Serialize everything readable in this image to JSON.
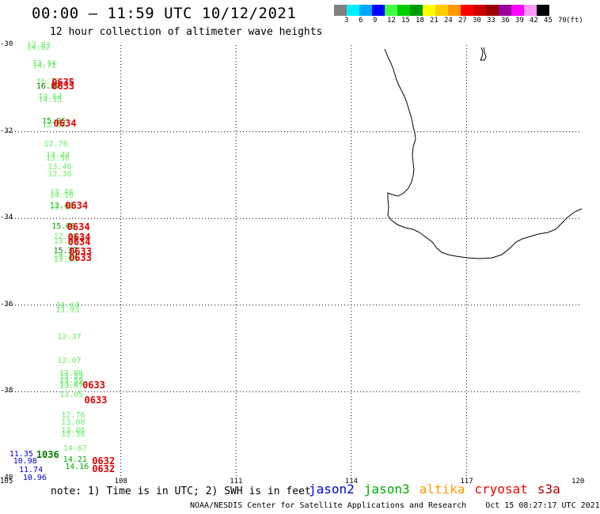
{
  "header": {
    "title": "00:00 – 11:59 UTC 10/12/2021",
    "subtitle": "12 hour collection of altimeter wave heights"
  },
  "legend": {
    "unit": "(ft)",
    "colors": [
      "#808080",
      "#00f0ff",
      "#00a8ff",
      "#0000ff",
      "#40ff40",
      "#00cc00",
      "#009900",
      "#ffff00",
      "#ffcc00",
      "#ff9900",
      "#ff0000",
      "#cc0000",
      "#990000",
      "#990099",
      "#ff00ff",
      "#ff99ff",
      "#000000"
    ],
    "labels": [
      "3",
      "6",
      "9",
      "12",
      "15",
      "18",
      "21",
      "24",
      "27",
      "30",
      "33",
      "36",
      "39",
      "42",
      "45",
      "70"
    ]
  },
  "axes": {
    "x_ticks": [
      "105",
      "108",
      "111",
      "114",
      "117",
      "120"
    ],
    "y_ticks": [
      "-30",
      "-32",
      "-34",
      "-36",
      "-38",
      "-40"
    ]
  },
  "observations": [
    {
      "v": "12.83",
      "lat": -30.02,
      "lon": 105.55,
      "c": "#66ee66"
    },
    {
      "v": "14.62",
      "lat": -30.08,
      "lon": 105.55,
      "c": "#66ee66"
    },
    {
      "v": "13.14",
      "lat": -30.43,
      "lon": 105.7,
      "c": "#66ee66"
    },
    {
      "v": "14.71",
      "lat": -30.49,
      "lon": 105.7,
      "c": "#66ee66"
    },
    {
      "v": "16.73",
      "lat": -30.86,
      "lon": 105.8,
      "c": "#66ee66"
    },
    {
      "v": "16.87",
      "lat": -30.96,
      "lon": 105.8,
      "c": "#007700"
    },
    {
      "v": "14.64",
      "lat": -31.2,
      "lon": 105.85,
      "c": "#66ee66"
    },
    {
      "v": "14.15",
      "lat": -31.27,
      "lon": 105.85,
      "c": "#66ee66"
    },
    {
      "v": "15.05",
      "lat": -31.77,
      "lon": 105.95,
      "c": "#00aa00"
    },
    {
      "v": "13.63",
      "lat": -31.86,
      "lon": 105.95,
      "c": "#66ee66"
    },
    {
      "v": "12.76",
      "lat": -32.3,
      "lon": 106.0,
      "c": "#66ee66"
    },
    {
      "v": "13.44",
      "lat": -32.55,
      "lon": 106.05,
      "c": "#66ee66"
    },
    {
      "v": "13.56",
      "lat": -32.62,
      "lon": 106.05,
      "c": "#66ee66"
    },
    {
      "v": "13.46",
      "lat": -32.83,
      "lon": 106.1,
      "c": "#66ee66"
    },
    {
      "v": "12.36",
      "lat": -33.0,
      "lon": 106.1,
      "c": "#66ee66"
    },
    {
      "v": "13.46",
      "lat": -33.41,
      "lon": 106.15,
      "c": "#66ee66"
    },
    {
      "v": "14.16",
      "lat": -33.49,
      "lon": 106.15,
      "c": "#66ee66"
    },
    {
      "v": "13.42",
      "lat": -33.72,
      "lon": 106.15,
      "c": "#00aa00"
    },
    {
      "v": "13.96",
      "lat": -33.76,
      "lon": 106.15,
      "c": "#66ee66"
    },
    {
      "v": "15.08",
      "lat": -34.2,
      "lon": 106.2,
      "c": "#00aa00"
    },
    {
      "v": "12.88",
      "lat": -34.43,
      "lon": 106.25,
      "c": "#66ee66"
    },
    {
      "v": "13.21",
      "lat": -34.55,
      "lon": 106.25,
      "c": "#66ee66"
    },
    {
      "v": "15.37",
      "lat": -34.77,
      "lon": 106.25,
      "c": "#007700"
    },
    {
      "v": "14.32",
      "lat": -34.85,
      "lon": 106.25,
      "c": "#66ee66"
    },
    {
      "v": "13.29",
      "lat": -34.9,
      "lon": 106.25,
      "c": "#66ee66"
    },
    {
      "v": "13.83",
      "lat": -34.97,
      "lon": 106.25,
      "c": "#66ee66"
    },
    {
      "v": "14.04",
      "lat": -36.03,
      "lon": 106.3,
      "c": "#66ee66"
    },
    {
      "v": "13.93",
      "lat": -36.13,
      "lon": 106.3,
      "c": "#66ee66"
    },
    {
      "v": "12.37",
      "lat": -36.75,
      "lon": 106.35,
      "c": "#66ee66"
    },
    {
      "v": "12.07",
      "lat": -37.3,
      "lon": 106.35,
      "c": "#66ee66"
    },
    {
      "v": "13.88",
      "lat": -37.6,
      "lon": 106.4,
      "c": "#66ee66"
    },
    {
      "v": "13.53",
      "lat": -37.67,
      "lon": 106.4,
      "c": "#66ee66"
    },
    {
      "v": "13.59",
      "lat": -37.75,
      "lon": 106.4,
      "c": "#66ee66"
    },
    {
      "v": "13.84",
      "lat": -37.83,
      "lon": 106.4,
      "c": "#66ee66"
    },
    {
      "v": "13.67",
      "lat": -37.88,
      "lon": 106.4,
      "c": "#66ee66"
    },
    {
      "v": "13.05",
      "lat": -38.08,
      "lon": 106.4,
      "c": "#66ee66"
    },
    {
      "v": "12.76",
      "lat": -38.55,
      "lon": 106.45,
      "c": "#66ee66"
    },
    {
      "v": "13.00",
      "lat": -38.72,
      "lon": 106.45,
      "c": "#66ee66"
    },
    {
      "v": "13.06",
      "lat": -38.9,
      "lon": 106.45,
      "c": "#66ee66"
    },
    {
      "v": "13.36",
      "lat": -39.0,
      "lon": 106.45,
      "c": "#66ee66"
    },
    {
      "v": "14.67",
      "lat": -39.32,
      "lon": 106.5,
      "c": "#66ee66"
    },
    {
      "v": "14.21",
      "lat": -39.58,
      "lon": 106.5,
      "c": "#00aa00"
    },
    {
      "v": "14.16",
      "lat": -39.75,
      "lon": 106.55,
      "c": "#00aa00"
    },
    {
      "v": "11.35",
      "lat": -39.45,
      "lon": 105.1,
      "c": "#0000cc"
    },
    {
      "v": "10.98",
      "lat": -39.62,
      "lon": 105.2,
      "c": "#0000cc"
    },
    {
      "v": "11.74",
      "lat": -39.82,
      "lon": 105.35,
      "c": "#0000cc"
    },
    {
      "v": "10.96",
      "lat": -40.0,
      "lon": 105.45,
      "c": "#0000cc"
    }
  ],
  "times": [
    {
      "t": "0635",
      "lat": -30.85,
      "lon": 106.2
    },
    {
      "t": "0633",
      "lat": -30.95,
      "lon": 106.2
    },
    {
      "t": "0634",
      "lat": -31.8,
      "lon": 106.25
    },
    {
      "t": "0634",
      "lat": -33.7,
      "lon": 106.55
    },
    {
      "t": "0634",
      "lat": -34.2,
      "lon": 106.6
    },
    {
      "t": "0634",
      "lat": -34.43,
      "lon": 106.62
    },
    {
      "t": "0634",
      "lat": -34.55,
      "lon": 106.62
    },
    {
      "t": "0633",
      "lat": -34.77,
      "lon": 106.65
    },
    {
      "t": "0633",
      "lat": -34.9,
      "lon": 106.65
    },
    {
      "t": "0633",
      "lat": -37.85,
      "lon": 107.0
    },
    {
      "t": "0633",
      "lat": -38.2,
      "lon": 107.05
    },
    {
      "t": "1036",
      "lat": -39.45,
      "lon": 105.8,
      "c": "#007700"
    },
    {
      "t": "0632",
      "lat": -39.6,
      "lon": 107.25
    },
    {
      "t": "0632",
      "lat": -39.78,
      "lon": 107.25
    }
  ],
  "note": "note: 1) Time is in UTC; 2) SWH is in feet",
  "satellites": [
    {
      "name": "jason2",
      "color": "#0000cc"
    },
    {
      "name": "jason3",
      "color": "#00aa00"
    },
    {
      "name": "altika",
      "color": "#ff9900"
    },
    {
      "name": "cryosat",
      "color": "#ee0000"
    },
    {
      "name": "s3a",
      "color": "#aa0000"
    }
  ],
  "footer": {
    "credit": "NOAA/NESDIS Center for Satellite Applications and Research",
    "timestamp": "Oct 15 08:27:17 UTC 2021"
  }
}
